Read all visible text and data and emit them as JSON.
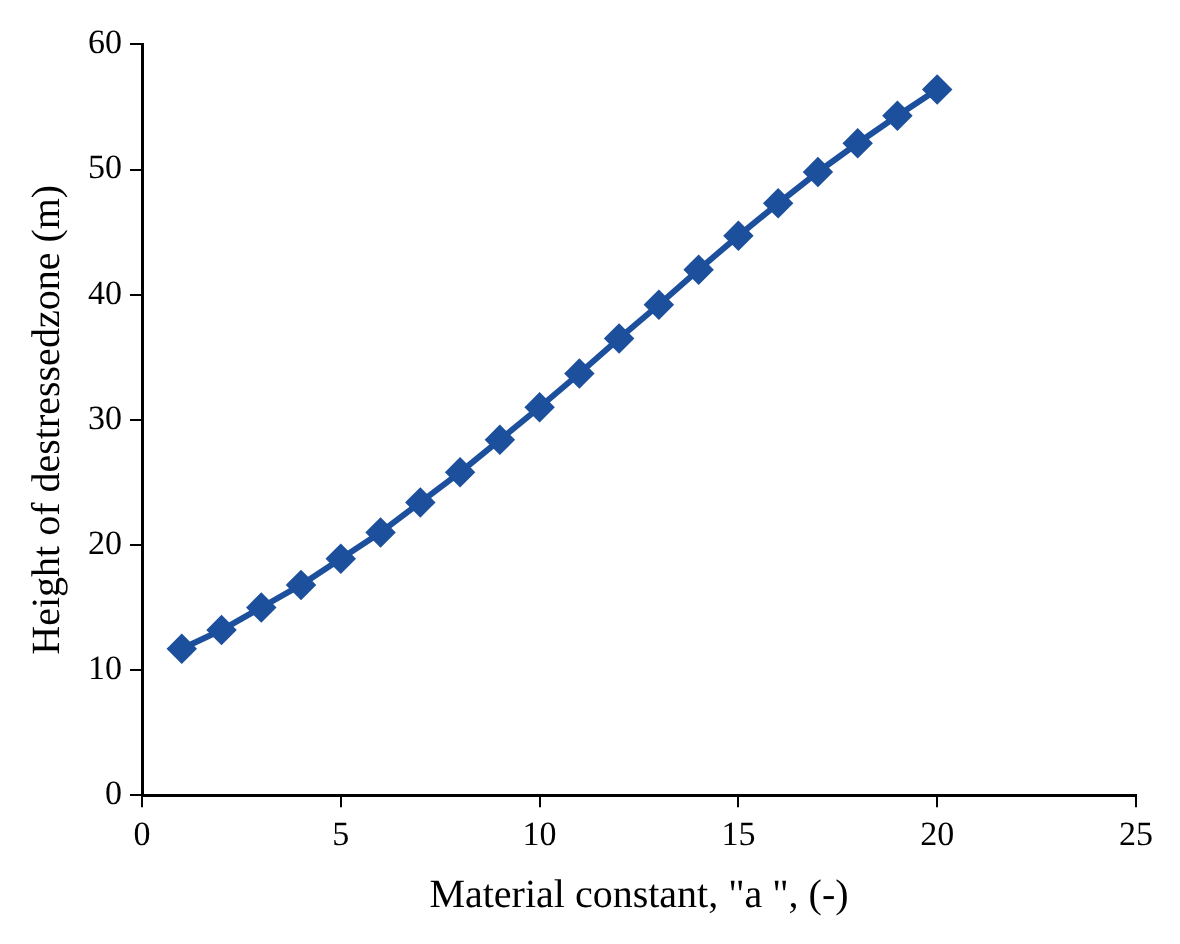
{
  "chart_data": {
    "type": "line",
    "xlabel": "Material constant, \"a \", (-)",
    "ylabel": "Height of destressedzone (m)",
    "x": [
      1,
      2,
      3,
      4,
      5,
      6,
      7,
      8,
      9,
      10,
      11,
      12,
      13,
      14,
      15,
      16,
      17,
      18,
      19,
      20
    ],
    "series": [
      {
        "color": "#1c4f9c",
        "values": [
          11.7,
          13.2,
          15.0,
          16.8,
          18.9,
          21.0,
          23.4,
          25.8,
          28.4,
          31.0,
          33.7,
          36.5,
          39.2,
          42.0,
          44.7,
          47.3,
          49.8,
          52.1,
          54.3,
          56.4
        ]
      }
    ],
    "xlim": [
      0,
      25
    ],
    "xticks": [
      0,
      5,
      10,
      15,
      20,
      25
    ],
    "ylim": [
      0,
      60
    ],
    "yticks": [
      0,
      10,
      20,
      30,
      40,
      50,
      60
    ],
    "grid": false,
    "legend": false,
    "marker": "diamond",
    "line_style": "solid"
  }
}
